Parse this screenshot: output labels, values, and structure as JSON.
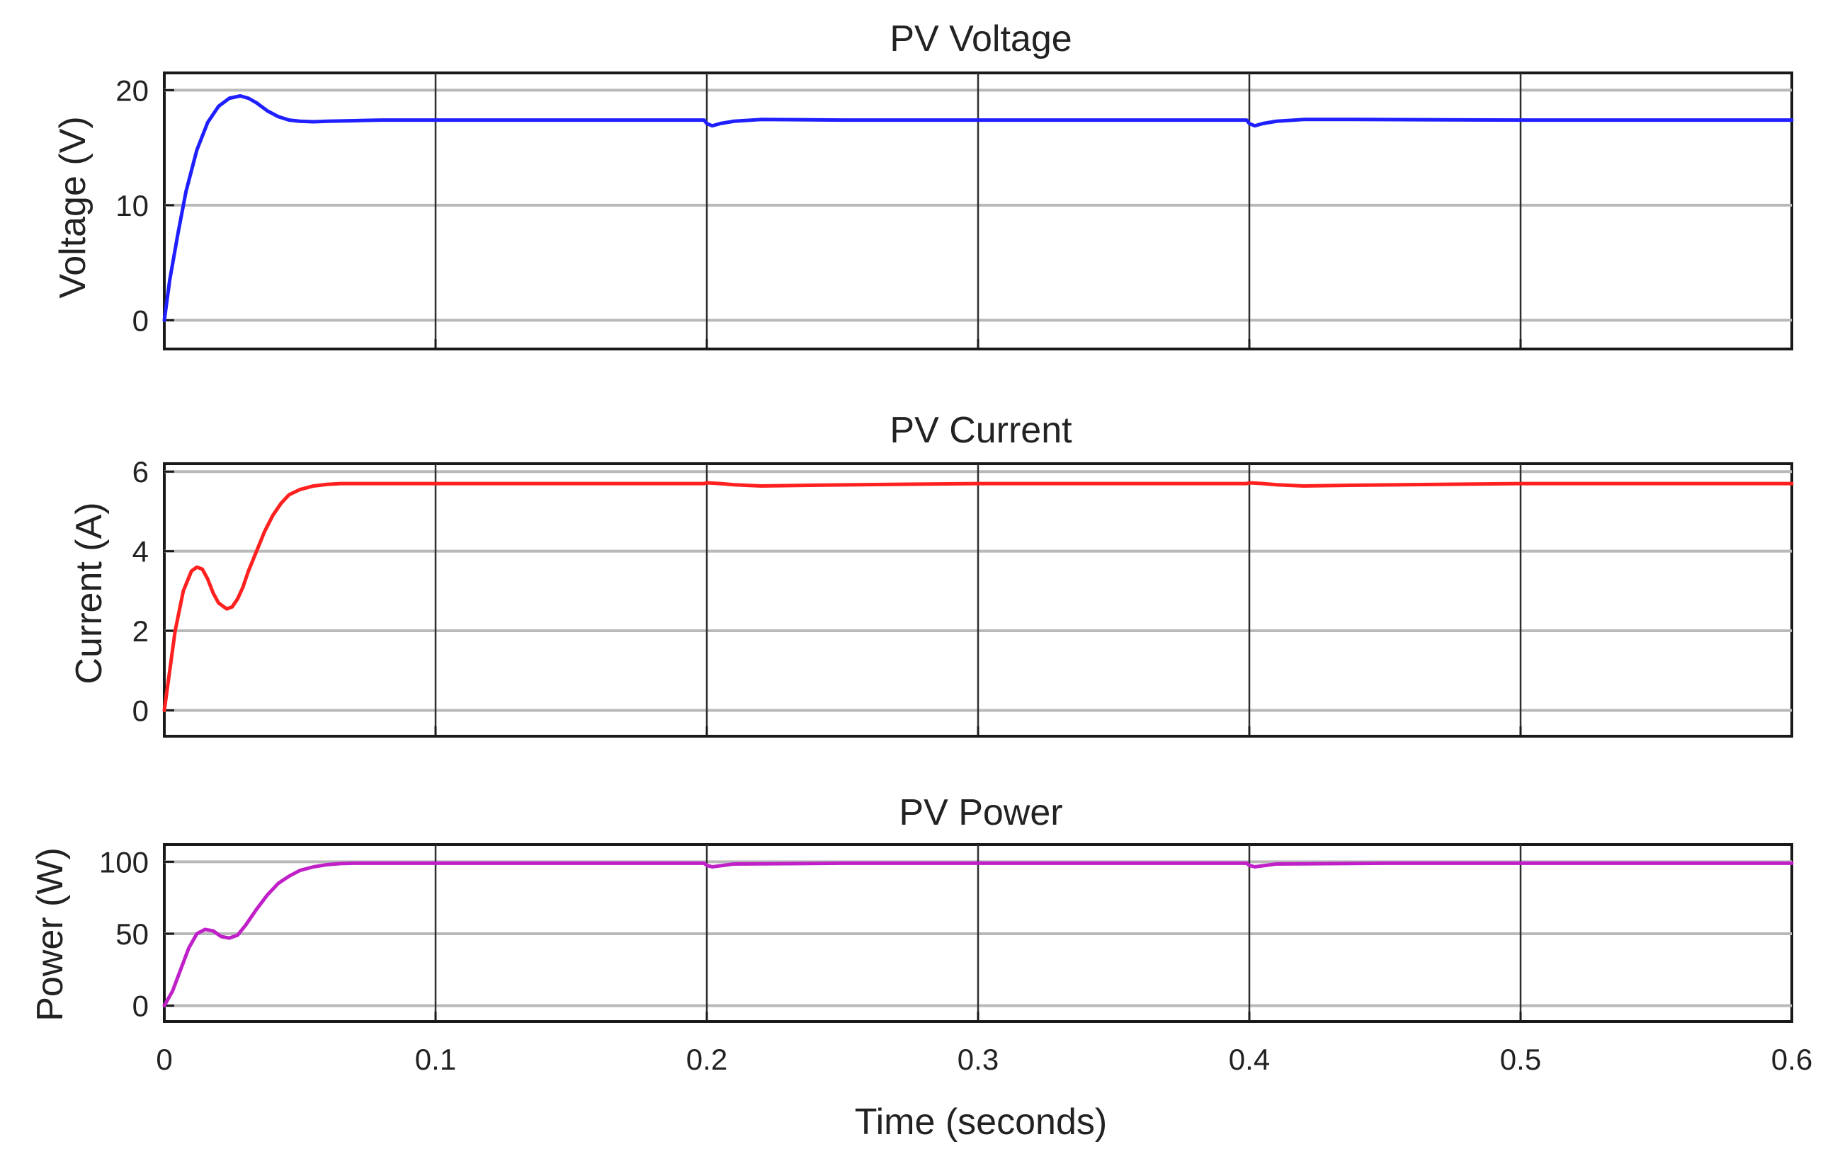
{
  "chart_data": [
    {
      "type": "line",
      "title": "PV Voltage",
      "xlabel": "",
      "ylabel": "Voltage (V)",
      "xlim": [
        0,
        0.6
      ],
      "ylim": [
        -2.5,
        21.5
      ],
      "xticks": [
        0,
        0.1,
        0.2,
        0.3,
        0.4,
        0.5,
        0.6
      ],
      "yticks": [
        0,
        10,
        20
      ],
      "ytick_labels": [
        "0",
        "10",
        "20"
      ],
      "grid": true,
      "series": [
        {
          "name": "PV Voltage",
          "color": "#1f1fff",
          "x": [
            0,
            0.002,
            0.005,
            0.008,
            0.012,
            0.016,
            0.02,
            0.024,
            0.028,
            0.031,
            0.034,
            0.038,
            0.042,
            0.046,
            0.05,
            0.055,
            0.06,
            0.07,
            0.08,
            0.1,
            0.15,
            0.199,
            0.2,
            0.202,
            0.205,
            0.21,
            0.22,
            0.25,
            0.3,
            0.35,
            0.399,
            0.4,
            0.402,
            0.405,
            0.41,
            0.42,
            0.44,
            0.5,
            0.55,
            0.6
          ],
          "values": [
            0,
            3.5,
            7.5,
            11.2,
            14.8,
            17.2,
            18.6,
            19.3,
            19.5,
            19.3,
            18.9,
            18.2,
            17.7,
            17.4,
            17.3,
            17.25,
            17.3,
            17.35,
            17.4,
            17.4,
            17.4,
            17.4,
            17.1,
            16.9,
            17.1,
            17.3,
            17.45,
            17.4,
            17.4,
            17.4,
            17.4,
            17.1,
            16.9,
            17.1,
            17.3,
            17.45,
            17.45,
            17.4,
            17.4,
            17.4
          ]
        }
      ]
    },
    {
      "type": "line",
      "title": "PV Current",
      "xlabel": "",
      "ylabel": "Current (A)",
      "xlim": [
        0,
        0.6
      ],
      "ylim": [
        -0.65,
        6.2
      ],
      "xticks": [
        0,
        0.1,
        0.2,
        0.3,
        0.4,
        0.5,
        0.6
      ],
      "yticks": [
        0,
        2,
        4,
        6
      ],
      "ytick_labels": [
        "0",
        "2",
        "4",
        "6"
      ],
      "grid": true,
      "series": [
        {
          "name": "PV Current",
          "color": "#ff2020",
          "x": [
            0,
            0.002,
            0.004,
            0.007,
            0.01,
            0.012,
            0.014,
            0.016,
            0.018,
            0.02,
            0.023,
            0.025,
            0.027,
            0.029,
            0.031,
            0.034,
            0.037,
            0.04,
            0.043,
            0.046,
            0.05,
            0.055,
            0.06,
            0.065,
            0.07,
            0.08,
            0.1,
            0.15,
            0.199,
            0.2,
            0.205,
            0.21,
            0.22,
            0.24,
            0.3,
            0.35,
            0.399,
            0.4,
            0.405,
            0.41,
            0.42,
            0.44,
            0.5,
            0.55,
            0.6
          ],
          "values": [
            0,
            1.0,
            2.0,
            3.0,
            3.5,
            3.6,
            3.55,
            3.3,
            2.95,
            2.7,
            2.55,
            2.6,
            2.8,
            3.1,
            3.5,
            4.0,
            4.5,
            4.9,
            5.2,
            5.42,
            5.55,
            5.64,
            5.68,
            5.7,
            5.7,
            5.7,
            5.7,
            5.7,
            5.7,
            5.72,
            5.7,
            5.67,
            5.64,
            5.66,
            5.7,
            5.7,
            5.7,
            5.72,
            5.7,
            5.67,
            5.64,
            5.66,
            5.7,
            5.7,
            5.7
          ]
        }
      ]
    },
    {
      "type": "line",
      "title": "PV Power",
      "xlabel": "Time (seconds)",
      "ylabel": "Power (W)",
      "xlim": [
        0,
        0.6
      ],
      "ylim": [
        -11,
        112
      ],
      "xticks": [
        0,
        0.1,
        0.2,
        0.3,
        0.4,
        0.5,
        0.6
      ],
      "xtick_labels": [
        "0",
        "0.1",
        "0.2",
        "0.3",
        "0.4",
        "0.5",
        "0.6"
      ],
      "yticks": [
        0,
        50,
        100
      ],
      "ytick_labels": [
        "0",
        "50",
        "100"
      ],
      "grid": true,
      "series": [
        {
          "name": "PV Power",
          "color": "#c020c8",
          "x": [
            0,
            0.003,
            0.006,
            0.009,
            0.012,
            0.015,
            0.018,
            0.021,
            0.024,
            0.027,
            0.03,
            0.034,
            0.038,
            0.042,
            0.046,
            0.05,
            0.055,
            0.06,
            0.065,
            0.07,
            0.08,
            0.1,
            0.15,
            0.199,
            0.2,
            0.202,
            0.206,
            0.21,
            0.25,
            0.3,
            0.35,
            0.399,
            0.4,
            0.402,
            0.406,
            0.41,
            0.45,
            0.5,
            0.55,
            0.6
          ],
          "values": [
            0,
            10,
            25,
            40,
            50,
            53,
            52,
            48,
            47,
            49,
            56,
            67,
            77,
            85,
            90,
            94,
            96.5,
            98,
            98.8,
            99,
            99,
            99,
            99,
            99,
            97.5,
            96.5,
            97.5,
            98.5,
            99,
            99,
            99,
            99,
            97.5,
            96.5,
            97.5,
            98.5,
            99,
            99,
            99,
            99
          ]
        }
      ]
    }
  ]
}
